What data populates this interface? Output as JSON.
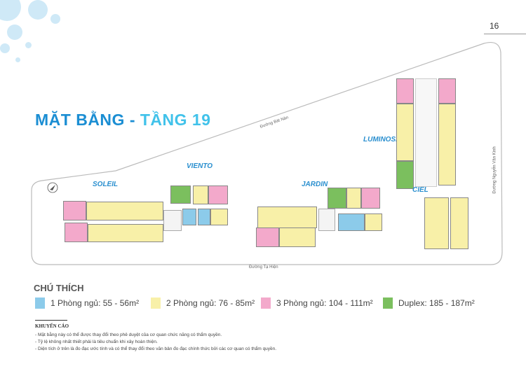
{
  "page_number": "16",
  "title": {
    "part1": "MẶT BẰNG - ",
    "part2": "TẦNG 19"
  },
  "roads": {
    "top": "Đường Bát Nàn",
    "bottom": "Đường Tạ Hiện",
    "right": "Đường Nguyễn Văn Kinh"
  },
  "blocks": [
    "SOLEIL",
    "VIENTO",
    "JARDIN",
    "LUMINOSA",
    "CIEL"
  ],
  "colors": {
    "one_bed": "#8ccbea",
    "two_bed": "#f8f0a8",
    "three_bed": "#f3a9cb",
    "duplex": "#7bbf5e",
    "title_dark": "#1b8ed3",
    "title_light": "#41c2ea"
  },
  "legend": {
    "title": "CHÚ THÍCH",
    "items": [
      {
        "label": "1 Phòng ngủ: 55 - 56m²",
        "color": "#8ccbea"
      },
      {
        "label": "2 Phòng ngủ: 76 - 85m²",
        "color": "#f8f0a8"
      },
      {
        "label": "3 Phòng ngủ: 104 - 111m²",
        "color": "#f3a9cb"
      },
      {
        "label": "Duplex: 185 - 187m²",
        "color": "#7bbf5e"
      }
    ]
  },
  "warning": {
    "title": "KHUYẾN CÁO",
    "notes": [
      "-  Mặt bằng này có thể được thay đổi theo phê duyệt của cơ quan chức năng có thẩm quyền.",
      "-  Tỷ lệ không nhất thiết phải là tiêu chuẩn khi xây hoàn thiện.",
      "-  Diện tích ở trên là đo đạc ước tính và có thể thay đổi theo văn bản đo đạc chính thức bởi các cơ quan có thẩm quyền."
    ]
  }
}
